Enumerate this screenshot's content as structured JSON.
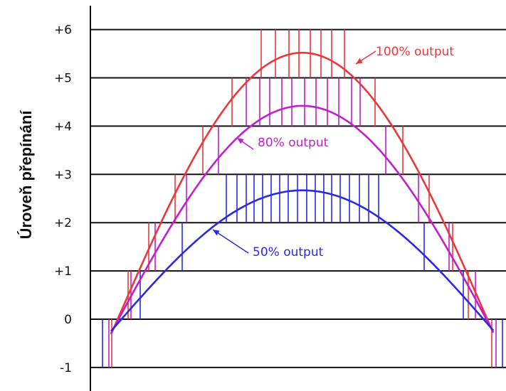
{
  "chart_data": {
    "type": "line",
    "ylabel": "Úroveň přepínání",
    "xlabel": "",
    "title": "",
    "ylim": [
      -1,
      6
    ],
    "yticks": [
      "+6",
      "+5",
      "+4",
      "+3",
      "+2",
      "+1",
      "0",
      "-1"
    ],
    "grid": true,
    "series": [
      {
        "name": "100% output",
        "color": "#e8383d",
        "peak": 5.7,
        "switch_lines": [
          {
            "level": 5,
            "x": [
              367,
              387,
              406,
              420,
              436,
              451,
              466,
              484
            ]
          },
          {
            "level": 4,
            "x": [
              326,
              527
            ]
          },
          {
            "level": 3,
            "x": [
              285,
              566
            ]
          },
          {
            "level": 2,
            "x": [
              246,
              603
            ]
          },
          {
            "level": 1,
            "x": [
              209,
              636
            ]
          },
          {
            "level": 0,
            "x": [
              180,
              658
            ]
          },
          {
            "level": -1,
            "x": [
              157,
              691
            ]
          }
        ]
      },
      {
        "name": "80% output",
        "color": "#c01fd0",
        "peak": 4.6,
        "switch_lines": [
          {
            "level": 4,
            "x": [
              346,
              365,
              379,
              396,
              410,
              428,
              444,
              460,
              476,
              494,
              506
            ]
          },
          {
            "level": 3,
            "x": [
              307,
              542
            ]
          },
          {
            "level": 2,
            "x": [
              262,
              588
            ]
          },
          {
            "level": 1,
            "x": [
              218,
              631
            ]
          },
          {
            "level": 0,
            "x": [
              184,
              668
            ]
          },
          {
            "level": -1,
            "x": [
              153,
              697
            ]
          }
        ]
      },
      {
        "name": "50% output",
        "color": "#2a2ae6",
        "peak": 2.85,
        "switch_lines": [
          {
            "level": 2,
            "x": [
              318,
              333,
              346,
              357,
              369,
              381,
              393,
              405,
              418,
              431,
              443,
              455,
              466,
              478,
              491,
              505,
              518,
              532
            ]
          },
          {
            "level": 1,
            "x": [
              256,
              596
            ]
          },
          {
            "level": 0,
            "x": [
              197,
              651
            ]
          },
          {
            "level": -1,
            "x": [
              144,
              706
            ]
          }
        ]
      }
    ],
    "annotations": [
      "100% output",
      "80% output",
      "50% output"
    ]
  }
}
